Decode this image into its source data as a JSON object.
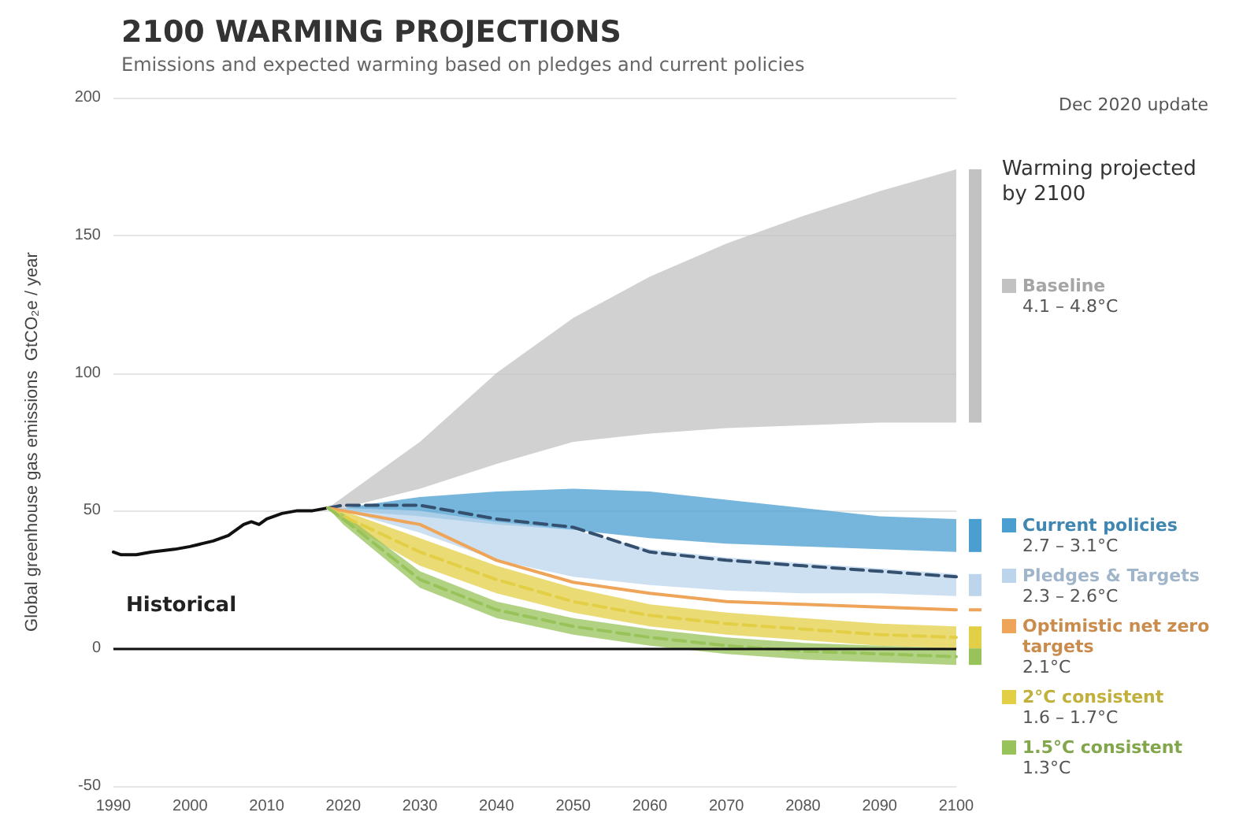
{
  "chart_data": {
    "type": "line",
    "title": "2100 WARMING PROJECTIONS",
    "subtitle": "Emissions and expected warming based on pledges and current policies",
    "ylabel": "Global greenhouse gas emissions  GtCO₂e / year",
    "x": [
      2018,
      2020,
      2030,
      2040,
      2050,
      2060,
      2070,
      2080,
      2090,
      2100
    ],
    "xlim": [
      1990,
      2100
    ],
    "xticks": [
      1990,
      2000,
      2010,
      2020,
      2030,
      2040,
      2050,
      2060,
      2070,
      2080,
      2090,
      2100
    ],
    "ylim": [
      -50,
      200
    ],
    "yticks": [
      -50,
      0,
      50,
      100,
      150,
      200
    ],
    "grid": "y",
    "legend": "right",
    "marker": "none",
    "ref_lines": [
      {
        "axis": "y",
        "value": 0,
        "color": "#111111"
      }
    ],
    "annotations": [
      "Dec 2020 update",
      "Warming projected by 2100",
      "4.1 – 4.8°C",
      "2.7 – 3.1°C",
      "2.3 – 2.6°C",
      "2.1°C",
      "1.6 – 1.7°C",
      "1.3°C"
    ],
    "series": [
      {
        "name": "Historical",
        "color": "#111111",
        "line_style": "solid",
        "x": [
          1990,
          1991,
          1993,
          1995,
          1998,
          2000,
          2003,
          2005,
          2007,
          2008,
          2009,
          2010,
          2012,
          2014,
          2016,
          2018
        ],
        "values": [
          35,
          34,
          34,
          35,
          36,
          37,
          39,
          41,
          45,
          46,
          45,
          47,
          49,
          50,
          50,
          51
        ]
      },
      {
        "name": "Baseline",
        "color": "#c2c2c2",
        "values": [
          null,
          null,
          null,
          null,
          null,
          null,
          null,
          null,
          null,
          null
        ],
        "lower": [
          51,
          51,
          58,
          67,
          75,
          78,
          80,
          81,
          82,
          82
        ],
        "upper": [
          51,
          55,
          75,
          100,
          120,
          135,
          147,
          157,
          166,
          174
        ]
      },
      {
        "name": "Current policies",
        "color": "#4a9ed0",
        "values": [
          null,
          null,
          null,
          null,
          null,
          null,
          null,
          null,
          null,
          null
        ],
        "lower": [
          51,
          50,
          48,
          45,
          43,
          40,
          38,
          37,
          36,
          35
        ],
        "upper": [
          51,
          51,
          55,
          57,
          58,
          57,
          54,
          51,
          48,
          47
        ]
      },
      {
        "name": "Pledges & Targets",
        "color": "#bcd5ec",
        "values": [
          null,
          null,
          null,
          null,
          null,
          null,
          null,
          null,
          null,
          null
        ],
        "lower": [
          51,
          50,
          42,
          32,
          26,
          23,
          21,
          20,
          20,
          19
        ],
        "upper": [
          51,
          51,
          50,
          46,
          43,
          36,
          33,
          31,
          29,
          27
        ]
      },
      {
        "color": "#34506e",
        "line_style": "dashed",
        "values": [
          51,
          52,
          52,
          47,
          44,
          35,
          32,
          30,
          28,
          26
        ]
      },
      {
        "name": "Optimistic net zero targets",
        "color": "#eea55a",
        "line_style": "solid",
        "values": [
          51,
          50,
          45,
          32,
          24,
          20,
          17,
          16,
          15,
          14
        ]
      },
      {
        "name": "2°C consistent",
        "color": "#e3cf45",
        "line_style": "dashed",
        "values": [
          51,
          48,
          35,
          25,
          17,
          12,
          9,
          7,
          5,
          4
        ],
        "lower": [
          51,
          46,
          30,
          20,
          13,
          8,
          5,
          3,
          1,
          0
        ],
        "upper": [
          51,
          50,
          40,
          30,
          22,
          16,
          13,
          11,
          9,
          8
        ]
      },
      {
        "name": "1.5°C consistent",
        "color": "#98c35a",
        "line_style": "dashed",
        "values": [
          51,
          47,
          25,
          14,
          8,
          4,
          1,
          -1,
          -2,
          -3
        ],
        "lower": [
          51,
          45,
          22,
          11,
          5,
          1,
          -2,
          -4,
          -5,
          -6
        ],
        "upper": [
          51,
          49,
          28,
          17,
          11,
          7,
          4,
          2,
          1,
          0
        ]
      }
    ]
  }
}
